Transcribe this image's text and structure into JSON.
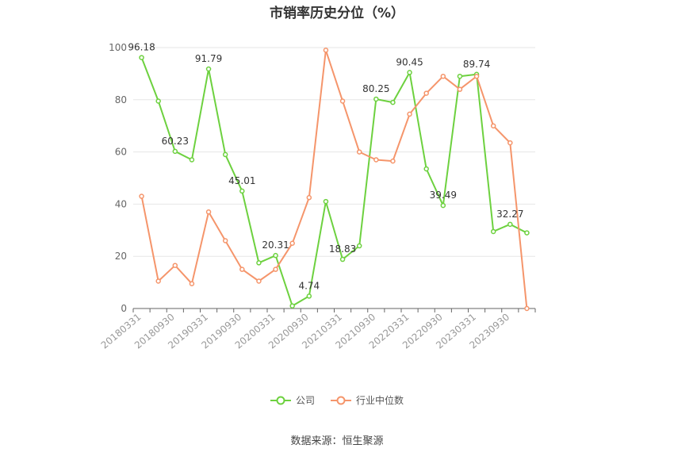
{
  "chart_data": {
    "type": "line",
    "title": "市销率历史分位（%）",
    "categories": [
      "20180331",
      "20180630",
      "20180930",
      "20181231",
      "20190331",
      "20190630",
      "20190930",
      "20191231",
      "20200331",
      "20200630",
      "20200930",
      "20201231",
      "20210331",
      "20210630",
      "20210930",
      "20211231",
      "20220331",
      "20220630",
      "20220930",
      "20221231",
      "20230331",
      "20230630",
      "20230930",
      "20231231"
    ],
    "x_tick_labels": [
      "20180331",
      "20180930",
      "20190331",
      "20190930",
      "20200331",
      "20200930",
      "20210331",
      "20210930",
      "20220331",
      "20220930",
      "20230331",
      "20230930"
    ],
    "ylim": [
      0,
      100
    ],
    "yticks": [
      0,
      20,
      40,
      60,
      80,
      100
    ],
    "grid": true,
    "legend_position": "bottom-center",
    "series": [
      {
        "name": "公司",
        "color": "#6dd13f",
        "values": [
          96.18,
          79.5,
          60.23,
          57.0,
          91.79,
          59.0,
          45.01,
          17.5,
          20.31,
          1.0,
          4.74,
          41.0,
          18.83,
          24.0,
          80.25,
          79.0,
          90.45,
          53.5,
          39.49,
          89.0,
          89.74,
          29.5,
          32.27,
          29.0
        ],
        "data_labels": {
          "0": "96.18",
          "2": "60.23",
          "4": "91.79",
          "6": "45.01",
          "8": "20.31",
          "10": "4.74",
          "12": "18.83",
          "14": "80.25",
          "16": "90.45",
          "18": "39.49",
          "20": "89.74",
          "22": "32.27"
        }
      },
      {
        "name": "行业中位数",
        "color": "#f5956b",
        "values": [
          43.0,
          10.5,
          16.5,
          9.5,
          37.0,
          26.0,
          15.0,
          10.5,
          15.0,
          25.0,
          42.5,
          99.0,
          79.5,
          60.0,
          57.0,
          56.5,
          74.5,
          82.5,
          89.0,
          84.0,
          89.0,
          70.0,
          63.5,
          0.0
        ]
      }
    ]
  },
  "source": "数据来源：恒生聚源"
}
